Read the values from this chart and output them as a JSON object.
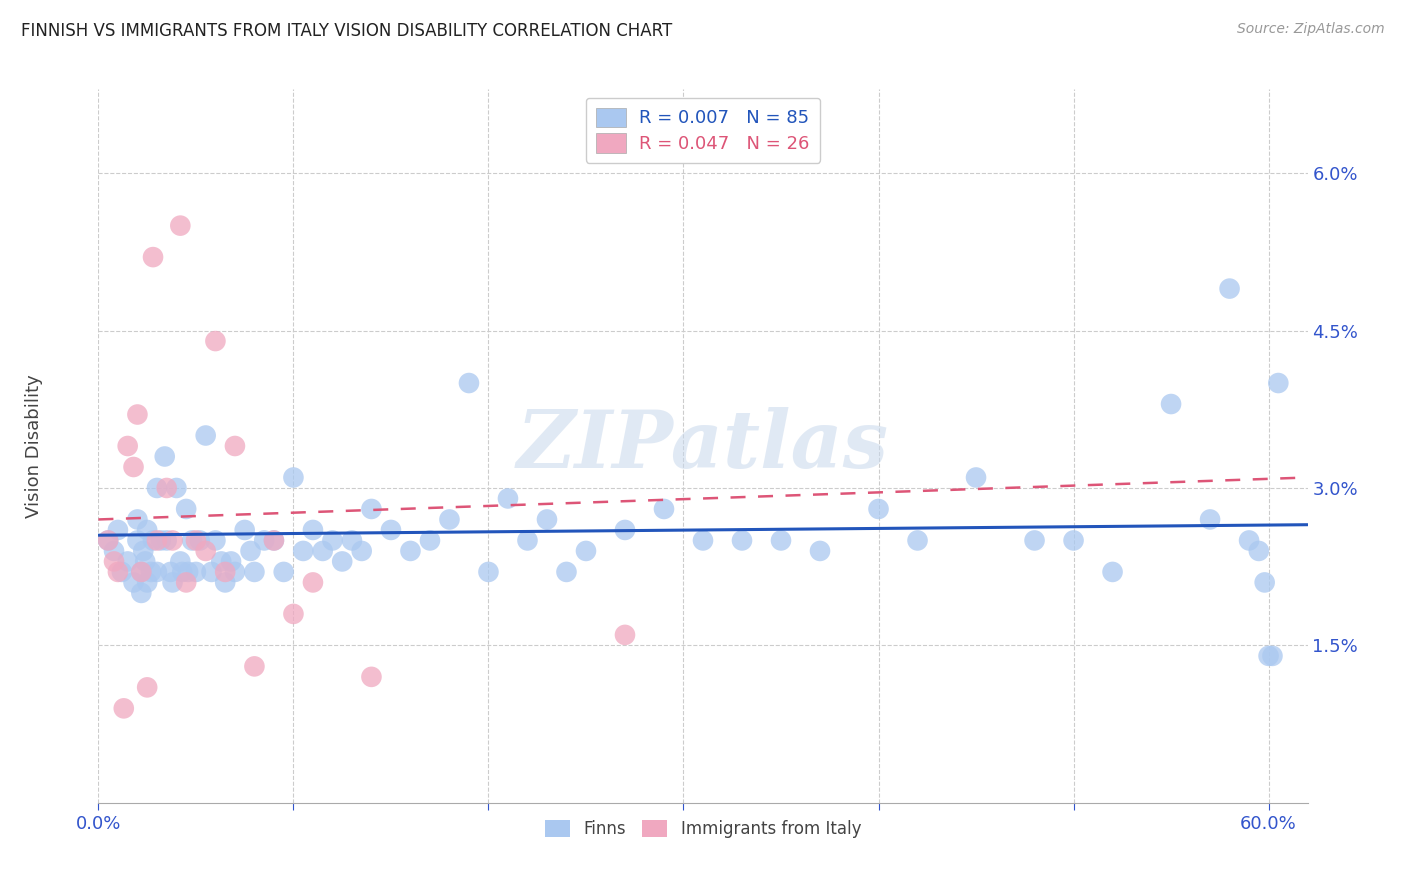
{
  "title": "FINNISH VS IMMIGRANTS FROM ITALY VISION DISABILITY CORRELATION CHART",
  "source": "Source: ZipAtlas.com",
  "ylabel": "Vision Disability",
  "xlim": [
    0.0,
    0.62
  ],
  "ylim": [
    0.0,
    0.068
  ],
  "yticks": [
    0.0,
    0.015,
    0.03,
    0.045,
    0.06
  ],
  "ytick_labels": [
    "",
    "1.5%",
    "3.0%",
    "4.5%",
    "6.0%"
  ],
  "xticks": [
    0.0,
    0.1,
    0.2,
    0.3,
    0.4,
    0.5,
    0.6
  ],
  "xtick_labels": [
    "0.0%",
    "",
    "",
    "",
    "",
    "",
    "60.0%"
  ],
  "watermark": "ZIPatlas",
  "finns_color": "#aac8f0",
  "italy_color": "#f0a8c0",
  "finns_line_color": "#2255bb",
  "italy_line_color": "#dd5577",
  "background_color": "#ffffff",
  "grid_color": "#cccccc",
  "title_color": "#222222",
  "ylabel_color": "#444444",
  "tick_color": "#3355cc",
  "finns_r": 0.007,
  "finns_n": 85,
  "italy_r": 0.047,
  "italy_n": 26,
  "finns_x": [
    0.005,
    0.008,
    0.01,
    0.012,
    0.015,
    0.018,
    0.02,
    0.02,
    0.022,
    0.022,
    0.023,
    0.024,
    0.025,
    0.025,
    0.027,
    0.028,
    0.03,
    0.03,
    0.032,
    0.034,
    0.035,
    0.037,
    0.038,
    0.04,
    0.042,
    0.043,
    0.045,
    0.046,
    0.048,
    0.05,
    0.052,
    0.055,
    0.058,
    0.06,
    0.063,
    0.065,
    0.068,
    0.07,
    0.075,
    0.078,
    0.08,
    0.085,
    0.09,
    0.095,
    0.1,
    0.105,
    0.11,
    0.115,
    0.12,
    0.125,
    0.13,
    0.135,
    0.14,
    0.15,
    0.16,
    0.17,
    0.18,
    0.19,
    0.2,
    0.21,
    0.22,
    0.23,
    0.24,
    0.25,
    0.27,
    0.29,
    0.31,
    0.33,
    0.35,
    0.37,
    0.4,
    0.42,
    0.45,
    0.48,
    0.5,
    0.52,
    0.55,
    0.57,
    0.58,
    0.59,
    0.595,
    0.598,
    0.6,
    0.602,
    0.605
  ],
  "finns_y": [
    0.025,
    0.024,
    0.026,
    0.022,
    0.023,
    0.021,
    0.027,
    0.025,
    0.022,
    0.02,
    0.024,
    0.023,
    0.026,
    0.021,
    0.022,
    0.025,
    0.03,
    0.022,
    0.025,
    0.033,
    0.025,
    0.022,
    0.021,
    0.03,
    0.023,
    0.022,
    0.028,
    0.022,
    0.025,
    0.022,
    0.025,
    0.035,
    0.022,
    0.025,
    0.023,
    0.021,
    0.023,
    0.022,
    0.026,
    0.024,
    0.022,
    0.025,
    0.025,
    0.022,
    0.031,
    0.024,
    0.026,
    0.024,
    0.025,
    0.023,
    0.025,
    0.024,
    0.028,
    0.026,
    0.024,
    0.025,
    0.027,
    0.04,
    0.022,
    0.029,
    0.025,
    0.027,
    0.022,
    0.024,
    0.026,
    0.028,
    0.025,
    0.025,
    0.025,
    0.024,
    0.028,
    0.025,
    0.031,
    0.025,
    0.025,
    0.022,
    0.038,
    0.027,
    0.049,
    0.025,
    0.024,
    0.021,
    0.014,
    0.014,
    0.04
  ],
  "italy_x": [
    0.005,
    0.008,
    0.01,
    0.013,
    0.015,
    0.018,
    0.02,
    0.022,
    0.025,
    0.028,
    0.03,
    0.035,
    0.038,
    0.042,
    0.045,
    0.05,
    0.055,
    0.06,
    0.065,
    0.07,
    0.08,
    0.09,
    0.1,
    0.11,
    0.14,
    0.27
  ],
  "italy_y": [
    0.025,
    0.023,
    0.022,
    0.009,
    0.034,
    0.032,
    0.037,
    0.022,
    0.011,
    0.052,
    0.025,
    0.03,
    0.025,
    0.055,
    0.021,
    0.025,
    0.024,
    0.044,
    0.022,
    0.034,
    0.013,
    0.025,
    0.018,
    0.021,
    0.012,
    0.016
  ],
  "finns_line_x": [
    0.0,
    0.62
  ],
  "finns_line_y": [
    0.0255,
    0.0265
  ],
  "italy_line_x": [
    0.0,
    0.62
  ],
  "italy_line_y": [
    0.027,
    0.031
  ]
}
